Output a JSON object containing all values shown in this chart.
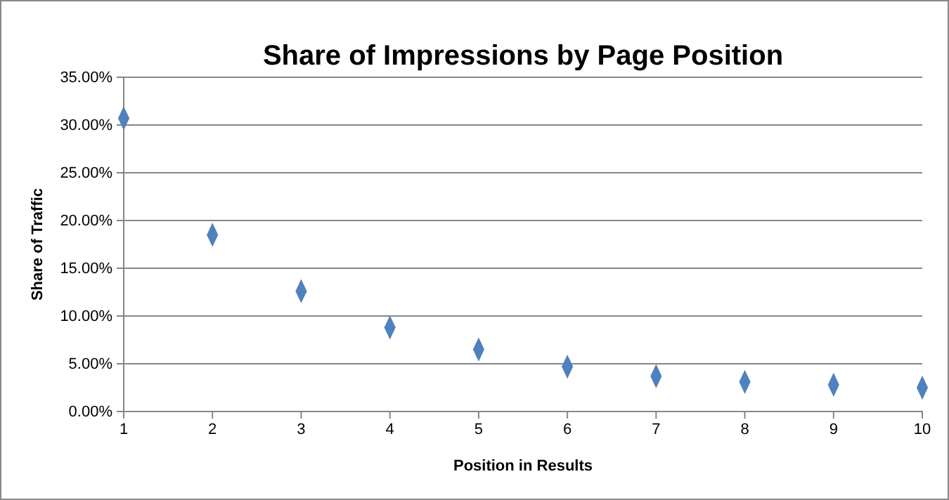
{
  "chart_data": {
    "type": "scatter",
    "title": "Share of Impressions by Page Position",
    "xlabel": "Position in Results",
    "ylabel": "Share of Traffic",
    "x": [
      1,
      2,
      3,
      4,
      5,
      6,
      7,
      8,
      9,
      10
    ],
    "series": [
      {
        "color": "#4f81bd",
        "values": [
          30.7,
          18.5,
          12.6,
          8.8,
          6.5,
          4.7,
          3.7,
          3.1,
          2.8,
          2.5
        ]
      }
    ],
    "xlim": [
      1,
      10
    ],
    "xticks": [
      1,
      2,
      3,
      4,
      5,
      6,
      7,
      8,
      9,
      10
    ],
    "ylim": [
      0,
      35
    ],
    "yticks": [
      {
        "value": 0,
        "label": "0.00%"
      },
      {
        "value": 5,
        "label": "5.00%"
      },
      {
        "value": 10,
        "label": "10.00%"
      },
      {
        "value": 15,
        "label": "15.00%"
      },
      {
        "value": 20,
        "label": "20.00%"
      },
      {
        "value": 25,
        "label": "25.00%"
      },
      {
        "value": 30,
        "label": "30.00%"
      },
      {
        "value": 35,
        "label": "35.00%"
      }
    ],
    "grid": "y",
    "marker": "diamond"
  }
}
